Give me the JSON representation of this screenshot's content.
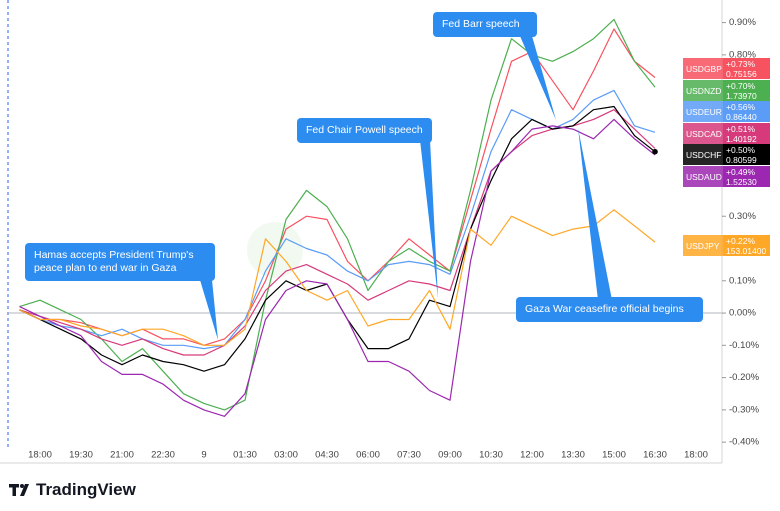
{
  "brand": "TradingView",
  "chart_data": {
    "type": "line",
    "categories": [
      null,
      "18:00",
      null,
      "19:30",
      null,
      "21:00",
      null,
      "22:30",
      null,
      "9",
      null,
      "01:30",
      null,
      "03:00",
      null,
      "04:30",
      null,
      "06:00",
      null,
      "07:30",
      null,
      "09:00",
      null,
      "10:30",
      null,
      "12:00",
      null,
      "13:30",
      null,
      "15:00",
      null,
      "16:30",
      null,
      "18:00"
    ],
    "ylim": [
      -0.415,
      0.97
    ],
    "yticks": [
      {
        "value": 0.9,
        "label": "0.90%"
      },
      {
        "value": 0.8,
        "label": "0.80%"
      },
      {
        "value": 0.3,
        "label": "0.30%"
      },
      {
        "value": 0.1,
        "label": "0.10%"
      },
      {
        "value": 0,
        "label": "0.00%"
      },
      {
        "value": -0.1,
        "label": "-0.10%"
      },
      {
        "value": -0.2,
        "label": "-0.20%"
      },
      {
        "value": -0.3,
        "label": "-0.30%"
      },
      {
        "value": -0.4,
        "label": "-0.40%"
      }
    ],
    "zero_line": true,
    "series": [
      {
        "name": "USDGBP",
        "color": "#f7525f",
        "price": "0.75156",
        "values": [
          0.01,
          -0.02,
          -0.02,
          -0.03,
          -0.05,
          -0.07,
          -0.05,
          -0.08,
          -0.08,
          -0.1,
          -0.08,
          -0.02,
          0.1,
          0.26,
          0.3,
          0.29,
          0.16,
          0.1,
          0.16,
          0.23,
          0.18,
          0.13,
          0.35,
          0.57,
          0.78,
          0.81,
          0.72,
          0.63,
          0.75,
          0.88,
          0.78,
          0.73,
          null,
          null
        ],
        "value_labels": [
          null,
          null,
          null,
          null,
          null,
          null,
          null,
          null,
          null,
          null,
          null,
          null,
          null,
          null,
          null,
          null,
          null,
          null,
          null,
          null,
          null,
          null,
          null,
          null,
          null,
          null,
          null,
          null,
          null,
          null,
          null,
          "+0.73%",
          null,
          null
        ]
      },
      {
        "name": "USDNZD",
        "color": "#4caf50",
        "price": "1.73970",
        "values": [
          0.02,
          0.04,
          0.01,
          -0.02,
          -0.08,
          -0.15,
          -0.11,
          -0.18,
          -0.25,
          -0.28,
          -0.3,
          -0.27,
          0.04,
          0.29,
          0.38,
          0.33,
          0.23,
          0.07,
          0.16,
          0.2,
          0.16,
          0.13,
          0.38,
          0.66,
          0.85,
          0.8,
          0.78,
          0.81,
          0.85,
          0.91,
          0.78,
          0.7,
          null,
          null
        ],
        "value_labels": [
          null,
          null,
          null,
          null,
          null,
          null,
          null,
          null,
          null,
          null,
          null,
          null,
          null,
          null,
          null,
          null,
          null,
          null,
          null,
          null,
          null,
          null,
          null,
          null,
          null,
          null,
          null,
          null,
          null,
          null,
          null,
          "+0.70%",
          null,
          null
        ]
      },
      {
        "name": "USDEUR",
        "color": "#5b9cf6",
        "price": "0.86440",
        "values": [
          0.01,
          -0.02,
          -0.04,
          -0.05,
          -0.07,
          -0.05,
          -0.08,
          -0.1,
          -0.1,
          -0.11,
          -0.1,
          -0.02,
          0.13,
          0.23,
          0.2,
          0.18,
          0.13,
          0.1,
          0.15,
          0.16,
          0.15,
          0.12,
          0.3,
          0.5,
          0.63,
          0.6,
          0.57,
          0.6,
          0.66,
          0.69,
          0.58,
          0.56,
          null,
          null
        ],
        "value_labels": [
          null,
          null,
          null,
          null,
          null,
          null,
          null,
          null,
          null,
          null,
          null,
          null,
          null,
          null,
          null,
          null,
          null,
          null,
          null,
          null,
          null,
          null,
          null,
          null,
          null,
          null,
          null,
          null,
          null,
          null,
          null,
          "+0.56%",
          null,
          null
        ]
      },
      {
        "name": "USDCAD",
        "color": "#d63a7a",
        "price": "1.40192",
        "values": [
          0.01,
          -0.01,
          -0.03,
          -0.05,
          -0.08,
          -0.1,
          -0.08,
          -0.11,
          -0.13,
          -0.13,
          -0.1,
          -0.04,
          0.07,
          0.13,
          0.15,
          0.12,
          0.09,
          0.04,
          0.07,
          0.1,
          0.09,
          0.07,
          0.26,
          0.44,
          0.5,
          0.55,
          0.57,
          0.58,
          0.6,
          0.63,
          0.57,
          0.51,
          null,
          null
        ],
        "value_labels": [
          null,
          null,
          null,
          null,
          null,
          null,
          null,
          null,
          null,
          null,
          null,
          null,
          null,
          null,
          null,
          null,
          null,
          null,
          null,
          null,
          null,
          null,
          null,
          null,
          null,
          null,
          null,
          null,
          null,
          null,
          null,
          "+0.51%",
          null,
          null
        ]
      },
      {
        "name": "USDCHF",
        "color": "#000000",
        "price": "0.80599",
        "values": [
          0.01,
          -0.02,
          -0.05,
          -0.08,
          -0.13,
          -0.16,
          -0.13,
          -0.15,
          -0.16,
          -0.18,
          -0.16,
          -0.08,
          0.04,
          0.1,
          0.07,
          0.09,
          -0.02,
          -0.11,
          -0.11,
          -0.08,
          0.04,
          0.02,
          0.26,
          0.41,
          0.54,
          0.6,
          0.57,
          0.58,
          0.63,
          0.64,
          0.55,
          0.5,
          null,
          null
        ],
        "value_labels": [
          null,
          null,
          null,
          null,
          null,
          null,
          null,
          null,
          null,
          null,
          null,
          null,
          null,
          null,
          null,
          null,
          null,
          null,
          null,
          null,
          null,
          null,
          null,
          null,
          null,
          null,
          null,
          null,
          null,
          null,
          null,
          "+0.50%",
          null,
          null
        ]
      },
      {
        "name": "USDAUD",
        "color": "#9c27b0",
        "price": "1.52530",
        "values": [
          0.02,
          -0.01,
          -0.04,
          -0.07,
          -0.15,
          -0.19,
          -0.19,
          -0.22,
          -0.27,
          -0.3,
          -0.32,
          -0.25,
          -0.02,
          0.07,
          0.1,
          0.09,
          -0.02,
          -0.15,
          -0.15,
          -0.18,
          -0.24,
          -0.27,
          0.16,
          0.44,
          0.5,
          0.57,
          0.58,
          0.57,
          0.54,
          0.6,
          0.54,
          0.49,
          null,
          null
        ],
        "value_labels": [
          null,
          null,
          null,
          null,
          null,
          null,
          null,
          null,
          null,
          null,
          null,
          null,
          null,
          null,
          null,
          null,
          null,
          null,
          null,
          null,
          null,
          null,
          null,
          null,
          null,
          null,
          null,
          null,
          null,
          null,
          null,
          "+0.49%",
          null,
          null
        ]
      },
      {
        "name": "USDJPY",
        "color": "#ffa726",
        "price": "153.01400",
        "values": [
          0.01,
          -0.02,
          -0.02,
          -0.04,
          -0.05,
          -0.07,
          -0.05,
          -0.05,
          -0.07,
          -0.1,
          -0.1,
          -0.05,
          0.23,
          0.16,
          0.07,
          0.04,
          0.07,
          -0.04,
          -0.02,
          -0.02,
          0.07,
          -0.05,
          0.26,
          0.21,
          0.3,
          0.27,
          0.24,
          0.26,
          0.27,
          0.32,
          0.27,
          0.22,
          null,
          null
        ],
        "value_labels": [
          null,
          null,
          null,
          null,
          null,
          null,
          null,
          null,
          null,
          null,
          null,
          null,
          null,
          null,
          null,
          null,
          null,
          null,
          null,
          null,
          null,
          null,
          null,
          null,
          null,
          null,
          null,
          null,
          null,
          null,
          null,
          "+0.22%",
          null,
          null
        ]
      }
    ],
    "annotations": [
      {
        "text": "Hamas accepts President Trump's peace plan to end war in Gaza"
      },
      {
        "text": "Fed Chair Powell speech"
      },
      {
        "text": "Fed Barr speech"
      },
      {
        "text": "Gaza War ceasefire official begins"
      }
    ]
  }
}
